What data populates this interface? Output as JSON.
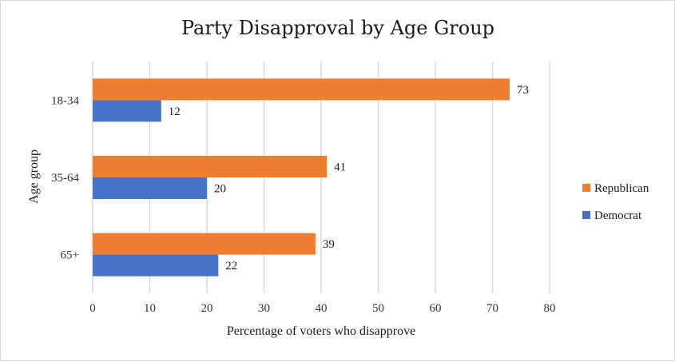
{
  "chart_data": {
    "type": "bar",
    "orientation": "horizontal",
    "title": "Party Disapproval by Age Group",
    "xlabel": "Percentage of voters who disapprove",
    "ylabel": "Age group",
    "categories": [
      "18-34",
      "35-64",
      "65+"
    ],
    "series": [
      {
        "name": "Republican",
        "color": "#ED7D31",
        "values": [
          73,
          41,
          39
        ]
      },
      {
        "name": "Democrat",
        "color": "#4472C4",
        "values": [
          12,
          20,
          22
        ]
      }
    ],
    "xlim": [
      0,
      80
    ],
    "xticks": [
      0,
      10,
      20,
      30,
      40,
      50,
      60,
      70,
      80
    ],
    "grid": true,
    "legend_position": "right",
    "gridline_color": "#d9d9d9"
  }
}
